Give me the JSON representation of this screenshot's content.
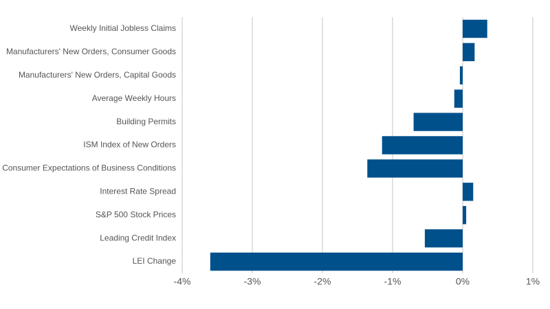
{
  "chart_data": {
    "type": "hbar",
    "categories": [
      "Weekly Initial Jobless Claims",
      "Manufacturers' New Orders, Consumer Goods",
      "Manufacturers' New Orders, Capital Goods",
      "Average Weekly Hours",
      "Building Permits",
      "ISM Index of New Orders",
      "Consumer Expectations of Business Conditions",
      "Interest Rate Spread",
      "S&P 500 Stock Prices",
      "Leading Credit Index",
      "LEI Change"
    ],
    "values": [
      0.35,
      0.17,
      -0.04,
      -0.12,
      -0.7,
      -1.15,
      -1.36,
      0.15,
      0.05,
      -0.54,
      -3.6
    ],
    "color": "#00508c",
    "xlim": [
      -4,
      1
    ],
    "xticks": [
      {
        "value": -4,
        "label": "-4%"
      },
      {
        "value": -3,
        "label": "-3%"
      },
      {
        "value": -2,
        "label": "-2%"
      },
      {
        "value": -1,
        "label": "-1%"
      },
      {
        "value": 0,
        "label": "0%"
      },
      {
        "value": 1,
        "label": "1%"
      }
    ],
    "grid": true
  }
}
